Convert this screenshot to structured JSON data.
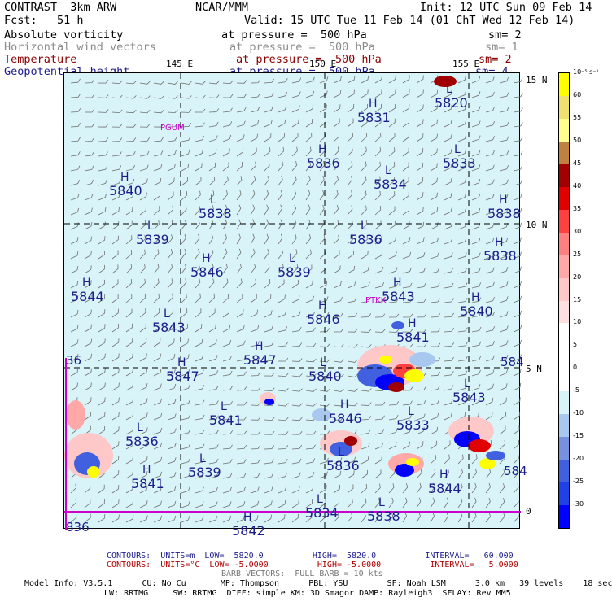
{
  "header": {
    "model": "CONTRAST  3km ARW",
    "center": "NCAR/MMM",
    "init": "Init: 12 UTC Sun 09 Feb 14",
    "fcst": "Fcst:   51 h",
    "valid": "Valid: 15 UTC Tue 11 Feb 14 (01 ChT Wed 12 Feb 14)"
  },
  "legend": [
    {
      "name": "Absolute vorticity",
      "pressure": "at pressure =  500 hPa",
      "sm": "sm= 2"
    },
    {
      "name": "Horizontal wind vectors",
      "pressure": "at pressure =  500 hPa",
      "sm": "sm= 1"
    },
    {
      "name": "Temperature",
      "pressure": "at pressure =  500 hPa",
      "sm": "sm= 2"
    },
    {
      "name": "Geopotential height",
      "pressure": "at pressure =  500 hPa",
      "sm": "sm= 4"
    }
  ],
  "axes": {
    "lon_labels": [
      "145 E",
      "150 E",
      "155 E"
    ],
    "lat_labels": [
      "15 N",
      "10 N",
      "5 N",
      "0"
    ]
  },
  "stations": [
    "PGUM",
    "PTKK"
  ],
  "pressure_centers": [
    {
      "type": "H",
      "value": "5831"
    },
    {
      "type": "L",
      "value": "5820"
    },
    {
      "type": "L",
      "value": "5833"
    },
    {
      "type": "H",
      "value": "5836"
    },
    {
      "type": "L",
      "value": "5834"
    },
    {
      "type": "H",
      "value": "5840"
    },
    {
      "type": "L",
      "value": "5838"
    },
    {
      "type": "H",
      "value": "5838"
    },
    {
      "type": "L",
      "value": "5839"
    },
    {
      "type": "L",
      "value": "5836"
    },
    {
      "type": "H",
      "value": "5846"
    },
    {
      "type": "L",
      "value": "5839"
    },
    {
      "type": "H",
      "value": "5838"
    },
    {
      "type": "H",
      "value": "5844"
    },
    {
      "type": "H",
      "value": "5843"
    },
    {
      "type": "L",
      "value": "5843"
    },
    {
      "type": "H",
      "value": "5846"
    },
    {
      "type": "H",
      "value": "5841"
    },
    {
      "type": "H",
      "value": "5840"
    },
    {
      "type": "H",
      "value": "5847"
    },
    {
      "type": "H",
      "value": "5847"
    },
    {
      "type": "L",
      "value": "5840"
    },
    {
      "type": "L",
      "value": "5843"
    },
    {
      "type": "L",
      "value": "5841"
    },
    {
      "type": "H",
      "value": "5846"
    },
    {
      "type": "L",
      "value": "5833"
    },
    {
      "type": "L",
      "value": "5836"
    },
    {
      "type": "L",
      "value": "5836"
    },
    {
      "type": "L",
      "value": "5839"
    },
    {
      "type": "H",
      "value": "5841"
    },
    {
      "type": "H",
      "value": "5844"
    },
    {
      "type": "L",
      "value": "5834"
    },
    {
      "type": "L",
      "value": "5838"
    },
    {
      "type": "H",
      "value": "5842"
    }
  ],
  "edge_labels": [
    "836",
    "36",
    "584",
    "584",
    "H",
    "L",
    "H",
    "H",
    "H"
  ],
  "colorbar": {
    "units": "10⁻⁵ s⁻¹",
    "levels": [
      "60",
      "55",
      "50",
      "45",
      "40",
      "35",
      "30",
      "25",
      "20",
      "15",
      "10",
      "5",
      "0",
      "-5",
      "-10",
      "-15",
      "-20",
      "-25",
      "-30"
    ],
    "colors": [
      "#ffff00",
      "#f0e070",
      "#ffff90",
      "#c08040",
      "#a00000",
      "#e00000",
      "#ff4040",
      "#ff8080",
      "#ffa8a8",
      "#ffc8c8",
      "#ffe0e0",
      "#ffffff",
      "#ffffff",
      "#ffffff",
      "#d8f4f8",
      "#a8c8f0",
      "#7890e0",
      "#4060e0",
      "#2040e8",
      "#0000ff"
    ]
  },
  "footer": {
    "contours1": "CONTOURS:  UNITS=m  LOW=  5820.0          HIGH=  5820.0          INTERVAL=   60.000",
    "contours2": "CONTOURS:  UNITS=°C  LOW= -5.0000          HIGH= -5.0000          INTERVAL=   5.0000",
    "barb": "BARB VECTORS:  FULL BARB = 10 kts",
    "model1": "Model Info: V3.5.1      CU: No Cu       MP: Thompson      PBL: YSU        SF: Noah LSM      3.0 km   39 levels    18 sec",
    "model2": "LW: RRTMG     SW: RRTMG  DIFF: simple KM: 3D Smagor DAMP: Rayleigh3  SFLAY: Rev MM5"
  }
}
